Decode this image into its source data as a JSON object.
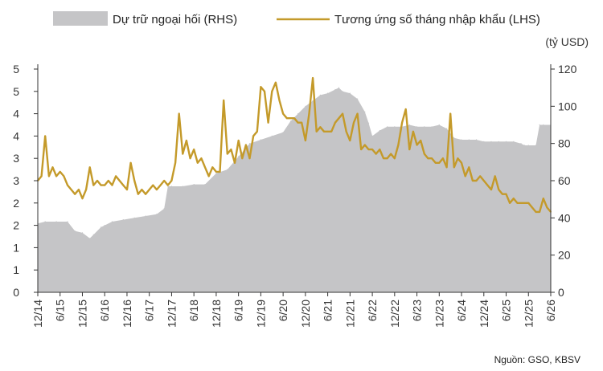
{
  "chart_data": {
    "type": "area+line",
    "legend": [
      {
        "label": "Dự trữ ngoại hối (RHS)",
        "kind": "area",
        "color": "#c5c5c7"
      },
      {
        "label": "Tương ứng số tháng nhập khẩu (LHS)",
        "kind": "line",
        "color": "#c49a2a"
      }
    ],
    "right_unit": "(tỷ USD)",
    "source": "Nguồn: GSO, KBSV",
    "left_axis": {
      "min": 0,
      "max": 5,
      "ticks": [
        "0",
        "1",
        "1",
        "2",
        "2",
        "3",
        "3",
        "4",
        "4",
        "5",
        "5"
      ],
      "tick_values": [
        0,
        0.5,
        1,
        1.5,
        2,
        2.5,
        3,
        3.5,
        4,
        4.5,
        5
      ]
    },
    "right_axis": {
      "min": 0,
      "max": 120,
      "ticks": [
        "0",
        "20",
        "40",
        "60",
        "80",
        "100",
        "120"
      ],
      "tick_values": [
        0,
        20,
        40,
        60,
        80,
        100,
        120
      ]
    },
    "x_axis": {
      "labels": [
        "12/14",
        "6/15",
        "12/15",
        "6/16",
        "12/16",
        "6/17",
        "12/17",
        "6/18",
        "12/18",
        "6/19",
        "12/19",
        "6/20",
        "12/20",
        "6/21",
        "12/21",
        "6/22",
        "12/22",
        "6/23",
        "12/23",
        "6/24",
        "12/24",
        "6/25",
        "12/25",
        "6/26"
      ],
      "label_months": [
        0,
        6,
        12,
        18,
        24,
        30,
        36,
        42,
        48,
        54,
        60,
        66,
        72,
        78,
        84,
        90,
        96,
        102,
        108,
        114,
        120,
        126,
        132,
        138
      ],
      "max_month": 138
    },
    "series": [
      {
        "name": "Dự trữ ngoại hối (RHS)",
        "axis": "right",
        "x_month": [
          0,
          2,
          5,
          8,
          10,
          12,
          14,
          15,
          17,
          18,
          20,
          23,
          26,
          29,
          32,
          34,
          35,
          36,
          39,
          42,
          45,
          48,
          51,
          54,
          57,
          60,
          63,
          66,
          68,
          70,
          72,
          74,
          76,
          78,
          80,
          81,
          82,
          84,
          86,
          88,
          89,
          90,
          92,
          94,
          96,
          98,
          100,
          102,
          104,
          106,
          108,
          110,
          112,
          114,
          116,
          118,
          120,
          122,
          124,
          126,
          128,
          130,
          131,
          132,
          134,
          135,
          136,
          138
        ],
        "values": [
          37,
          38,
          38,
          38,
          33,
          32,
          29,
          31,
          35,
          36,
          38,
          39,
          40,
          41,
          42,
          45,
          57,
          57,
          57,
          58,
          58,
          64,
          66,
          73,
          80,
          82,
          84,
          86,
          92,
          96,
          100,
          103,
          106,
          107,
          109,
          110,
          108,
          107,
          104,
          97,
          91,
          84,
          87,
          89,
          89,
          89,
          90,
          89,
          89,
          89,
          90,
          88,
          83,
          82,
          82,
          82,
          81,
          81,
          81,
          81,
          81,
          80,
          79,
          79,
          79,
          90,
          90,
          90
        ]
      },
      {
        "name": "Tương ứng số tháng nhập khẩu (LHS)",
        "axis": "left",
        "x_month": [
          0,
          1,
          2,
          3,
          4,
          5,
          6,
          7,
          8,
          9,
          10,
          11,
          12,
          13,
          14,
          15,
          16,
          17,
          18,
          19,
          20,
          21,
          22,
          23,
          24,
          25,
          26,
          27,
          28,
          29,
          30,
          31,
          32,
          33,
          34,
          35,
          36,
          37,
          38,
          39,
          40,
          41,
          42,
          43,
          44,
          45,
          46,
          47,
          48,
          49,
          50,
          51,
          52,
          53,
          54,
          55,
          56,
          57,
          58,
          59,
          60,
          61,
          62,
          63,
          64,
          65,
          66,
          67,
          68,
          69,
          70,
          71,
          72,
          73,
          74,
          75,
          76,
          77,
          78,
          79,
          80,
          81,
          82,
          83,
          84,
          85,
          86,
          87,
          88,
          89,
          90,
          91,
          92,
          93,
          94,
          95,
          96,
          97,
          98,
          99,
          100,
          101,
          102,
          103,
          104,
          105,
          106,
          107,
          108,
          109,
          110,
          111,
          112,
          113,
          114,
          115,
          116,
          117,
          118,
          119,
          120,
          121,
          122,
          123,
          124,
          125,
          126,
          127,
          128,
          129,
          130,
          131,
          132,
          133,
          134,
          135,
          136,
          137,
          138
        ],
        "values": [
          2.5,
          2.6,
          3.5,
          2.6,
          2.8,
          2.6,
          2.7,
          2.6,
          2.4,
          2.3,
          2.2,
          2.3,
          2.1,
          2.3,
          2.8,
          2.4,
          2.5,
          2.4,
          2.4,
          2.5,
          2.4,
          2.6,
          2.5,
          2.4,
          2.3,
          2.9,
          2.5,
          2.2,
          2.3,
          2.2,
          2.3,
          2.4,
          2.3,
          2.4,
          2.5,
          2.4,
          2.5,
          2.9,
          4.0,
          3.1,
          3.4,
          3.0,
          3.2,
          2.9,
          3.0,
          2.8,
          2.6,
          2.8,
          2.7,
          2.7,
          4.3,
          3.1,
          3.2,
          2.9,
          3.4,
          3.0,
          3.3,
          3.0,
          3.5,
          3.6,
          4.6,
          4.5,
          3.8,
          4.5,
          4.7,
          4.3,
          4.0,
          3.9,
          3.9,
          3.9,
          3.8,
          3.8,
          3.4,
          4.0,
          4.8,
          3.6,
          3.7,
          3.6,
          3.6,
          3.6,
          3.8,
          3.9,
          4.0,
          3.6,
          3.4,
          3.8,
          4.0,
          3.2,
          3.3,
          3.2,
          3.2,
          3.1,
          3.2,
          3.0,
          3.0,
          3.1,
          3.0,
          3.3,
          3.8,
          4.1,
          3.2,
          3.6,
          3.3,
          3.4,
          3.1,
          3.0,
          3.0,
          2.9,
          2.9,
          3.0,
          2.8,
          4.0,
          2.8,
          3.0,
          2.9,
          2.6,
          2.8,
          2.5,
          2.5,
          2.6,
          2.5,
          2.4,
          2.3,
          2.6,
          2.3,
          2.2,
          2.2,
          2.0,
          2.1,
          2.0,
          2.0,
          2.0,
          2.0,
          1.9,
          1.8,
          1.8,
          2.1,
          1.9,
          1.8
        ]
      }
    ]
  }
}
